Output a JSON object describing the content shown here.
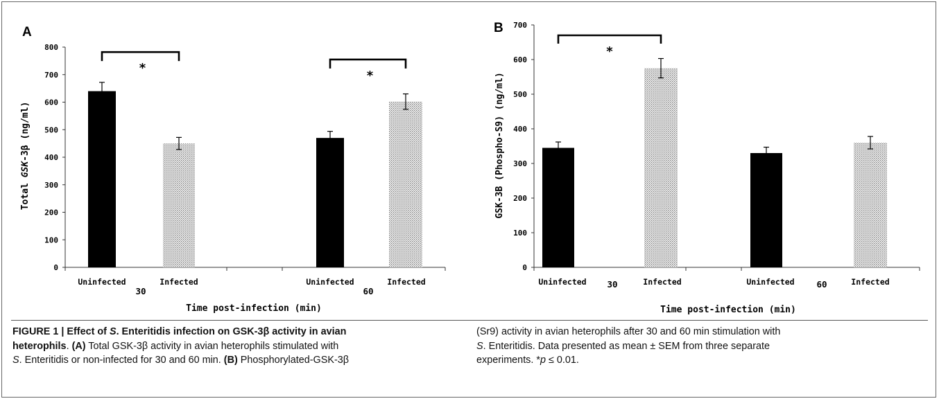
{
  "chart_data": [
    {
      "panel": "A",
      "type": "bar",
      "ylabel_parts": [
        "Total ",
        "GSK",
        "-3β (ng/ml)"
      ],
      "xlabel": "Time post-infection (min)",
      "ylim": [
        0,
        800
      ],
      "yticks": [
        "0",
        "100",
        "200",
        "300",
        "400",
        "500",
        "600",
        "700",
        "800"
      ],
      "categories": [
        "Uninfected",
        "Infected",
        "Uninfected",
        "Infected"
      ],
      "groups": [
        "30",
        "60"
      ],
      "values": [
        640,
        450,
        470,
        602
      ],
      "errors": [
        32,
        22,
        24,
        28
      ],
      "fills": [
        "solid",
        "dotted",
        "solid",
        "dotted"
      ],
      "significance": [
        {
          "between": [
            0,
            1
          ],
          "label": "*",
          "level": 782
        },
        {
          "between": [
            2,
            3
          ],
          "label": "*",
          "level": 755
        }
      ]
    },
    {
      "panel": "B",
      "type": "bar",
      "ylabel": "GSK-3B (Phospho-S9) (ng/ml)",
      "xlabel": "Time post-infection (min)",
      "ylim": [
        0,
        700
      ],
      "yticks": [
        "0",
        "100",
        "200",
        "300",
        "400",
        "500",
        "600",
        "700"
      ],
      "categories": [
        "Uninfected",
        "Infected",
        "Uninfected",
        "Infected"
      ],
      "groups": [
        "30",
        "60"
      ],
      "values": [
        345,
        575,
        330,
        360
      ],
      "errors": [
        17,
        28,
        17,
        18
      ],
      "fills": [
        "solid",
        "dotted",
        "solid",
        "dotted"
      ],
      "significance": [
        {
          "between": [
            0,
            1
          ],
          "label": "*",
          "level": 670
        }
      ]
    }
  ],
  "caption": {
    "col1": {
      "line1": [
        "FIGURE 1 | Effect of ",
        "S",
        ". Enteritidis infection on GSK-3β activity in avian"
      ],
      "line2": [
        "heterophils",
        ". ",
        "(A)",
        " Total GSK-3β activity in avian heterophils stimulated with"
      ],
      "line3": [
        "S",
        ". Enteritidis or non-infected for 30 and 60 min. ",
        "(B)",
        " Phosphorylated-GSK-3β"
      ]
    },
    "col2": {
      "line1": "(Sr9) activity in avian heterophils after 30 and 60 min stimulation with",
      "line2": [
        "S",
        ". Enteritidis. Data presented as mean ± SEM from three separate"
      ],
      "line3": [
        "experiments. *",
        "p",
        " ≤ 0.01."
      ]
    }
  }
}
